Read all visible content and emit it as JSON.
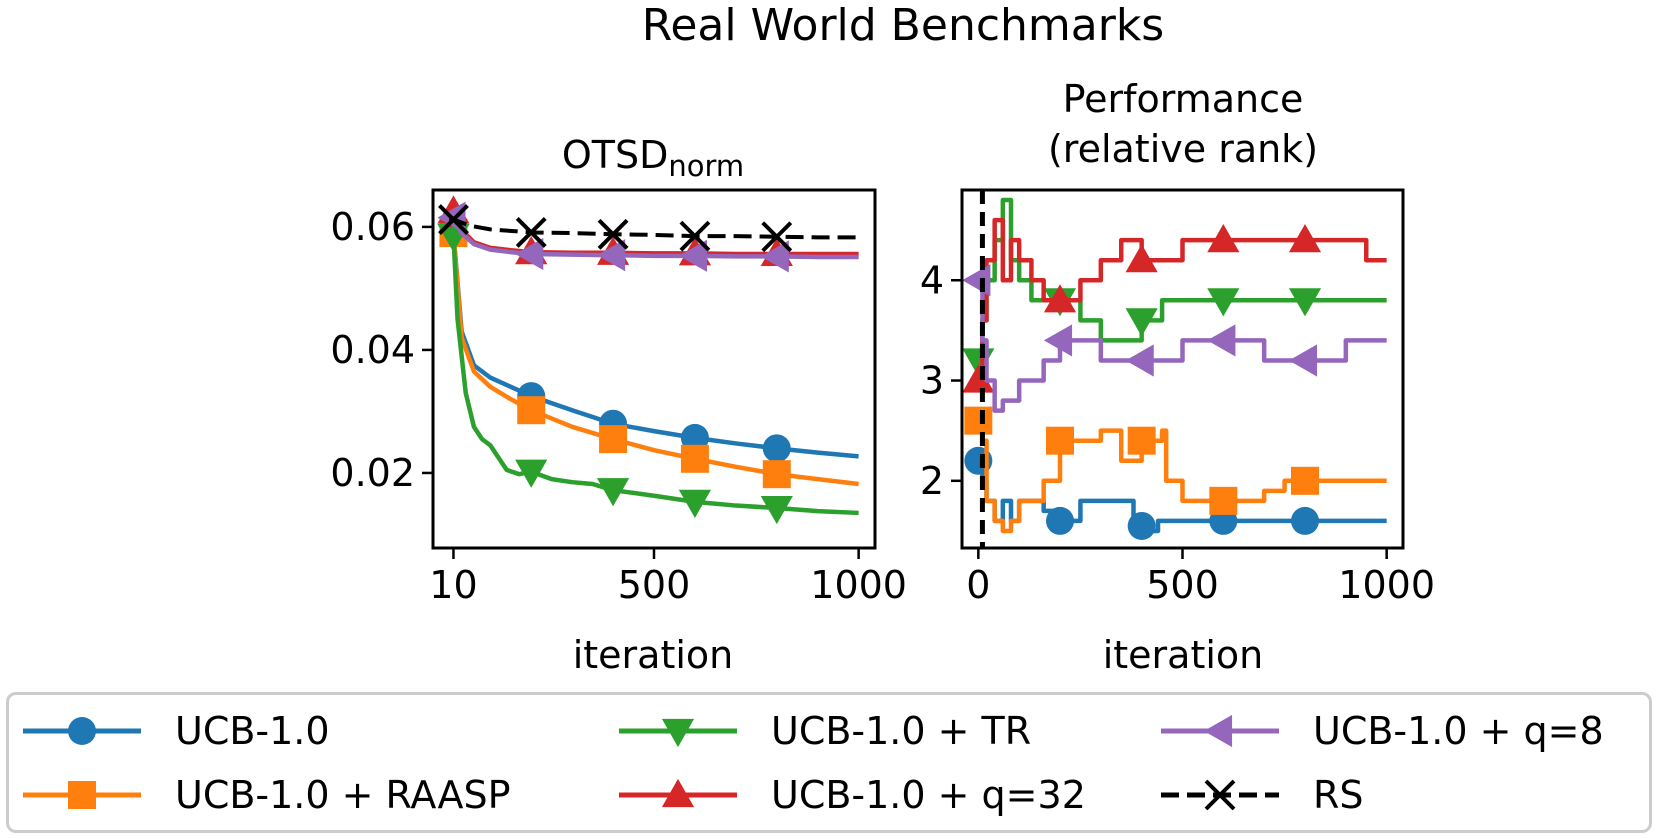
{
  "suptitle": "Real World Benchmarks",
  "colors": {
    "ucb": "#1f77b4",
    "raasp": "#ff7f0e",
    "tr": "#2ca02c",
    "q32": "#d62728",
    "q8": "#9467bd",
    "rs": "#000000"
  },
  "chart_data": [
    {
      "type": "line",
      "title": "OTSD",
      "title_subscript": "norm",
      "xlabel": "iteration",
      "ylabel": "",
      "xlim": [
        -40,
        1040
      ],
      "ylim": [
        0.0078,
        0.066
      ],
      "xticks": [
        {
          "v": 10,
          "label": "10"
        },
        {
          "v": 500,
          "label": "500"
        },
        {
          "v": 1000,
          "label": "1000"
        }
      ],
      "yticks": [
        {
          "v": 0.02,
          "label": "0.02"
        },
        {
          "v": 0.04,
          "label": "0.04"
        },
        {
          "v": 0.06,
          "label": "0.06"
        }
      ],
      "grid": false,
      "series": [
        {
          "key": "ucb",
          "name": "UCB-1.0",
          "marker": "circle",
          "x": [
            0,
            10,
            30,
            60,
            100,
            150,
            200,
            300,
            400,
            500,
            600,
            700,
            800,
            900,
            1000
          ],
          "y": [
            0.06,
            0.059,
            0.043,
            0.0375,
            0.0355,
            0.034,
            0.0325,
            0.0302,
            0.028,
            0.0268,
            0.0257,
            0.0248,
            0.024,
            0.0233,
            0.0227
          ],
          "markers": [
            10,
            200,
            400,
            600,
            800
          ]
        },
        {
          "key": "raasp",
          "name": "UCB-1.0 + RAASP",
          "marker": "square",
          "x": [
            0,
            10,
            30,
            60,
            100,
            150,
            200,
            300,
            400,
            500,
            600,
            700,
            800,
            900,
            1000
          ],
          "y": [
            0.06,
            0.059,
            0.042,
            0.0365,
            0.034,
            0.032,
            0.0302,
            0.0275,
            0.0255,
            0.0237,
            0.0223,
            0.021,
            0.0198,
            0.019,
            0.0182
          ],
          "markers": [
            10,
            200,
            400,
            600,
            800
          ]
        },
        {
          "key": "tr",
          "name": "UCB-1.0 + TR",
          "marker": "triangle-down",
          "x": [
            0,
            10,
            20,
            40,
            60,
            80,
            100,
            120,
            140,
            170,
            200,
            250,
            300,
            350,
            400,
            500,
            600,
            700,
            800,
            900,
            1000
          ],
          "y": [
            0.06,
            0.0585,
            0.045,
            0.033,
            0.0275,
            0.0255,
            0.0245,
            0.0225,
            0.0205,
            0.0198,
            0.0202,
            0.019,
            0.0185,
            0.0182,
            0.0172,
            0.0163,
            0.0153,
            0.0147,
            0.0143,
            0.0138,
            0.0135
          ],
          "markers": [
            10,
            200,
            400,
            600,
            800
          ]
        },
        {
          "key": "q32",
          "name": "UCB-1.0 + q=32",
          "marker": "triangle-up",
          "x": [
            0,
            10,
            30,
            60,
            100,
            150,
            200,
            300,
            400,
            500,
            600,
            700,
            800,
            900,
            1000
          ],
          "y": [
            0.06,
            0.0625,
            0.0595,
            0.0575,
            0.0566,
            0.0562,
            0.0559,
            0.0558,
            0.0558,
            0.0557,
            0.0557,
            0.0556,
            0.0556,
            0.0556,
            0.0556
          ],
          "markers": [
            10,
            200,
            400,
            600,
            800
          ]
        },
        {
          "key": "q8",
          "name": "UCB-1.0 + q=8",
          "marker": "triangle-left",
          "x": [
            0,
            10,
            30,
            60,
            100,
            150,
            200,
            300,
            400,
            500,
            600,
            700,
            800,
            900,
            1000
          ],
          "y": [
            0.061,
            0.0615,
            0.059,
            0.0572,
            0.0563,
            0.0559,
            0.0556,
            0.0555,
            0.0554,
            0.0553,
            0.0553,
            0.0552,
            0.0552,
            0.0551,
            0.0551
          ],
          "markers": [
            10,
            200,
            400,
            600,
            800
          ]
        },
        {
          "key": "rs",
          "name": "RS",
          "marker": "x",
          "dashed": true,
          "x": [
            0,
            10,
            50,
            100,
            200,
            300,
            400,
            500,
            600,
            700,
            800,
            900,
            1000
          ],
          "y": [
            0.061,
            0.0612,
            0.0602,
            0.0596,
            0.0591,
            0.059,
            0.0588,
            0.0587,
            0.0585,
            0.0585,
            0.0584,
            0.0583,
            0.0583
          ],
          "markers": [
            10,
            200,
            400,
            600,
            800
          ]
        }
      ]
    },
    {
      "type": "line",
      "title": "Performance",
      "title_line2": "(relative rank)",
      "xlabel": "iteration",
      "ylabel": "",
      "xlim": [
        -40,
        1040
      ],
      "ylim": [
        1.33,
        4.9
      ],
      "xticks": [
        {
          "v": 0,
          "label": "0"
        },
        {
          "v": 500,
          "label": "500"
        },
        {
          "v": 1000,
          "label": "1000"
        }
      ],
      "yticks": [
        {
          "v": 2,
          "label": "2"
        },
        {
          "v": 3,
          "label": "3"
        },
        {
          "v": 4,
          "label": "4"
        }
      ],
      "grid": false,
      "vline": {
        "x": 10,
        "style": "dashed"
      },
      "series": [
        {
          "key": "ucb",
          "name": "UCB-1.0",
          "marker": "circle",
          "x": [
            0,
            10,
            20,
            40,
            60,
            80,
            100,
            130,
            160,
            200,
            250,
            300,
            380,
            420,
            440,
            460,
            500,
            550,
            600,
            700,
            800,
            900,
            1000
          ],
          "y": [
            2.2,
            2.0,
            1.8,
            1.6,
            1.8,
            1.6,
            1.8,
            1.8,
            1.7,
            1.6,
            1.8,
            1.8,
            1.6,
            1.5,
            1.6,
            1.6,
            1.6,
            1.6,
            1.6,
            1.6,
            1.6,
            1.6,
            1.6
          ],
          "markers": [
            0,
            200,
            400,
            600,
            800
          ]
        },
        {
          "key": "raasp",
          "name": "UCB-1.0 + RAASP",
          "marker": "square",
          "x": [
            0,
            10,
            20,
            40,
            60,
            80,
            100,
            130,
            160,
            200,
            250,
            300,
            350,
            400,
            450,
            460,
            500,
            550,
            600,
            650,
            700,
            750,
            800,
            900,
            1000
          ],
          "y": [
            2.6,
            2.4,
            1.8,
            1.6,
            1.5,
            1.6,
            1.8,
            1.8,
            2.0,
            2.4,
            2.4,
            2.5,
            2.2,
            2.4,
            2.5,
            2.0,
            1.8,
            1.8,
            1.8,
            1.8,
            1.9,
            2.0,
            2.0,
            2.0,
            2.0
          ],
          "markers": [
            0,
            200,
            400,
            600,
            800
          ]
        },
        {
          "key": "tr",
          "name": "UCB-1.0 + TR",
          "marker": "triangle-down",
          "x": [
            0,
            10,
            20,
            40,
            60,
            80,
            100,
            130,
            160,
            200,
            250,
            300,
            350,
            400,
            450,
            500,
            600,
            700,
            800,
            900,
            1000
          ],
          "y": [
            3.2,
            3.6,
            4.0,
            4.4,
            4.8,
            4.2,
            4.0,
            3.8,
            3.8,
            3.8,
            3.6,
            3.4,
            3.4,
            3.6,
            3.8,
            3.8,
            3.8,
            3.8,
            3.8,
            3.8,
            3.8
          ],
          "markers": [
            0,
            200,
            400,
            600,
            800
          ]
        },
        {
          "key": "q32",
          "name": "UCB-1.0 + q=32",
          "marker": "triangle-up",
          "x": [
            0,
            10,
            20,
            40,
            60,
            80,
            100,
            130,
            160,
            200,
            250,
            300,
            350,
            400,
            450,
            500,
            600,
            700,
            800,
            900,
            950,
            1000
          ],
          "y": [
            3.0,
            3.6,
            4.2,
            4.6,
            4.0,
            4.4,
            4.2,
            4.0,
            3.8,
            3.8,
            4.0,
            4.2,
            4.4,
            4.2,
            4.2,
            4.4,
            4.4,
            4.4,
            4.4,
            4.4,
            4.2,
            4.2
          ],
          "markers": [
            0,
            200,
            400,
            600,
            800
          ]
        },
        {
          "key": "q8",
          "name": "UCB-1.0 + q=8",
          "marker": "triangle-left",
          "x": [
            0,
            10,
            20,
            40,
            60,
            80,
            100,
            130,
            160,
            200,
            250,
            300,
            350,
            400,
            500,
            550,
            600,
            700,
            800,
            900,
            1000
          ],
          "y": [
            4.0,
            3.4,
            3.0,
            2.7,
            2.8,
            2.8,
            3.0,
            3.0,
            3.2,
            3.4,
            3.4,
            3.2,
            3.2,
            3.2,
            3.4,
            3.4,
            3.4,
            3.2,
            3.2,
            3.4,
            3.4
          ],
          "markers": [
            0,
            200,
            400,
            600,
            800
          ]
        }
      ]
    }
  ],
  "legend": [
    {
      "key": "ucb",
      "label": "UCB-1.0"
    },
    {
      "key": "raasp",
      "label": "UCB-1.0 + RAASP"
    },
    {
      "key": "tr",
      "label": "UCB-1.0 + TR"
    },
    {
      "key": "q32",
      "label": "UCB-1.0 + q=32"
    },
    {
      "key": "q8",
      "label": "UCB-1.0 + q=8"
    },
    {
      "key": "rs",
      "label": "RS"
    }
  ]
}
